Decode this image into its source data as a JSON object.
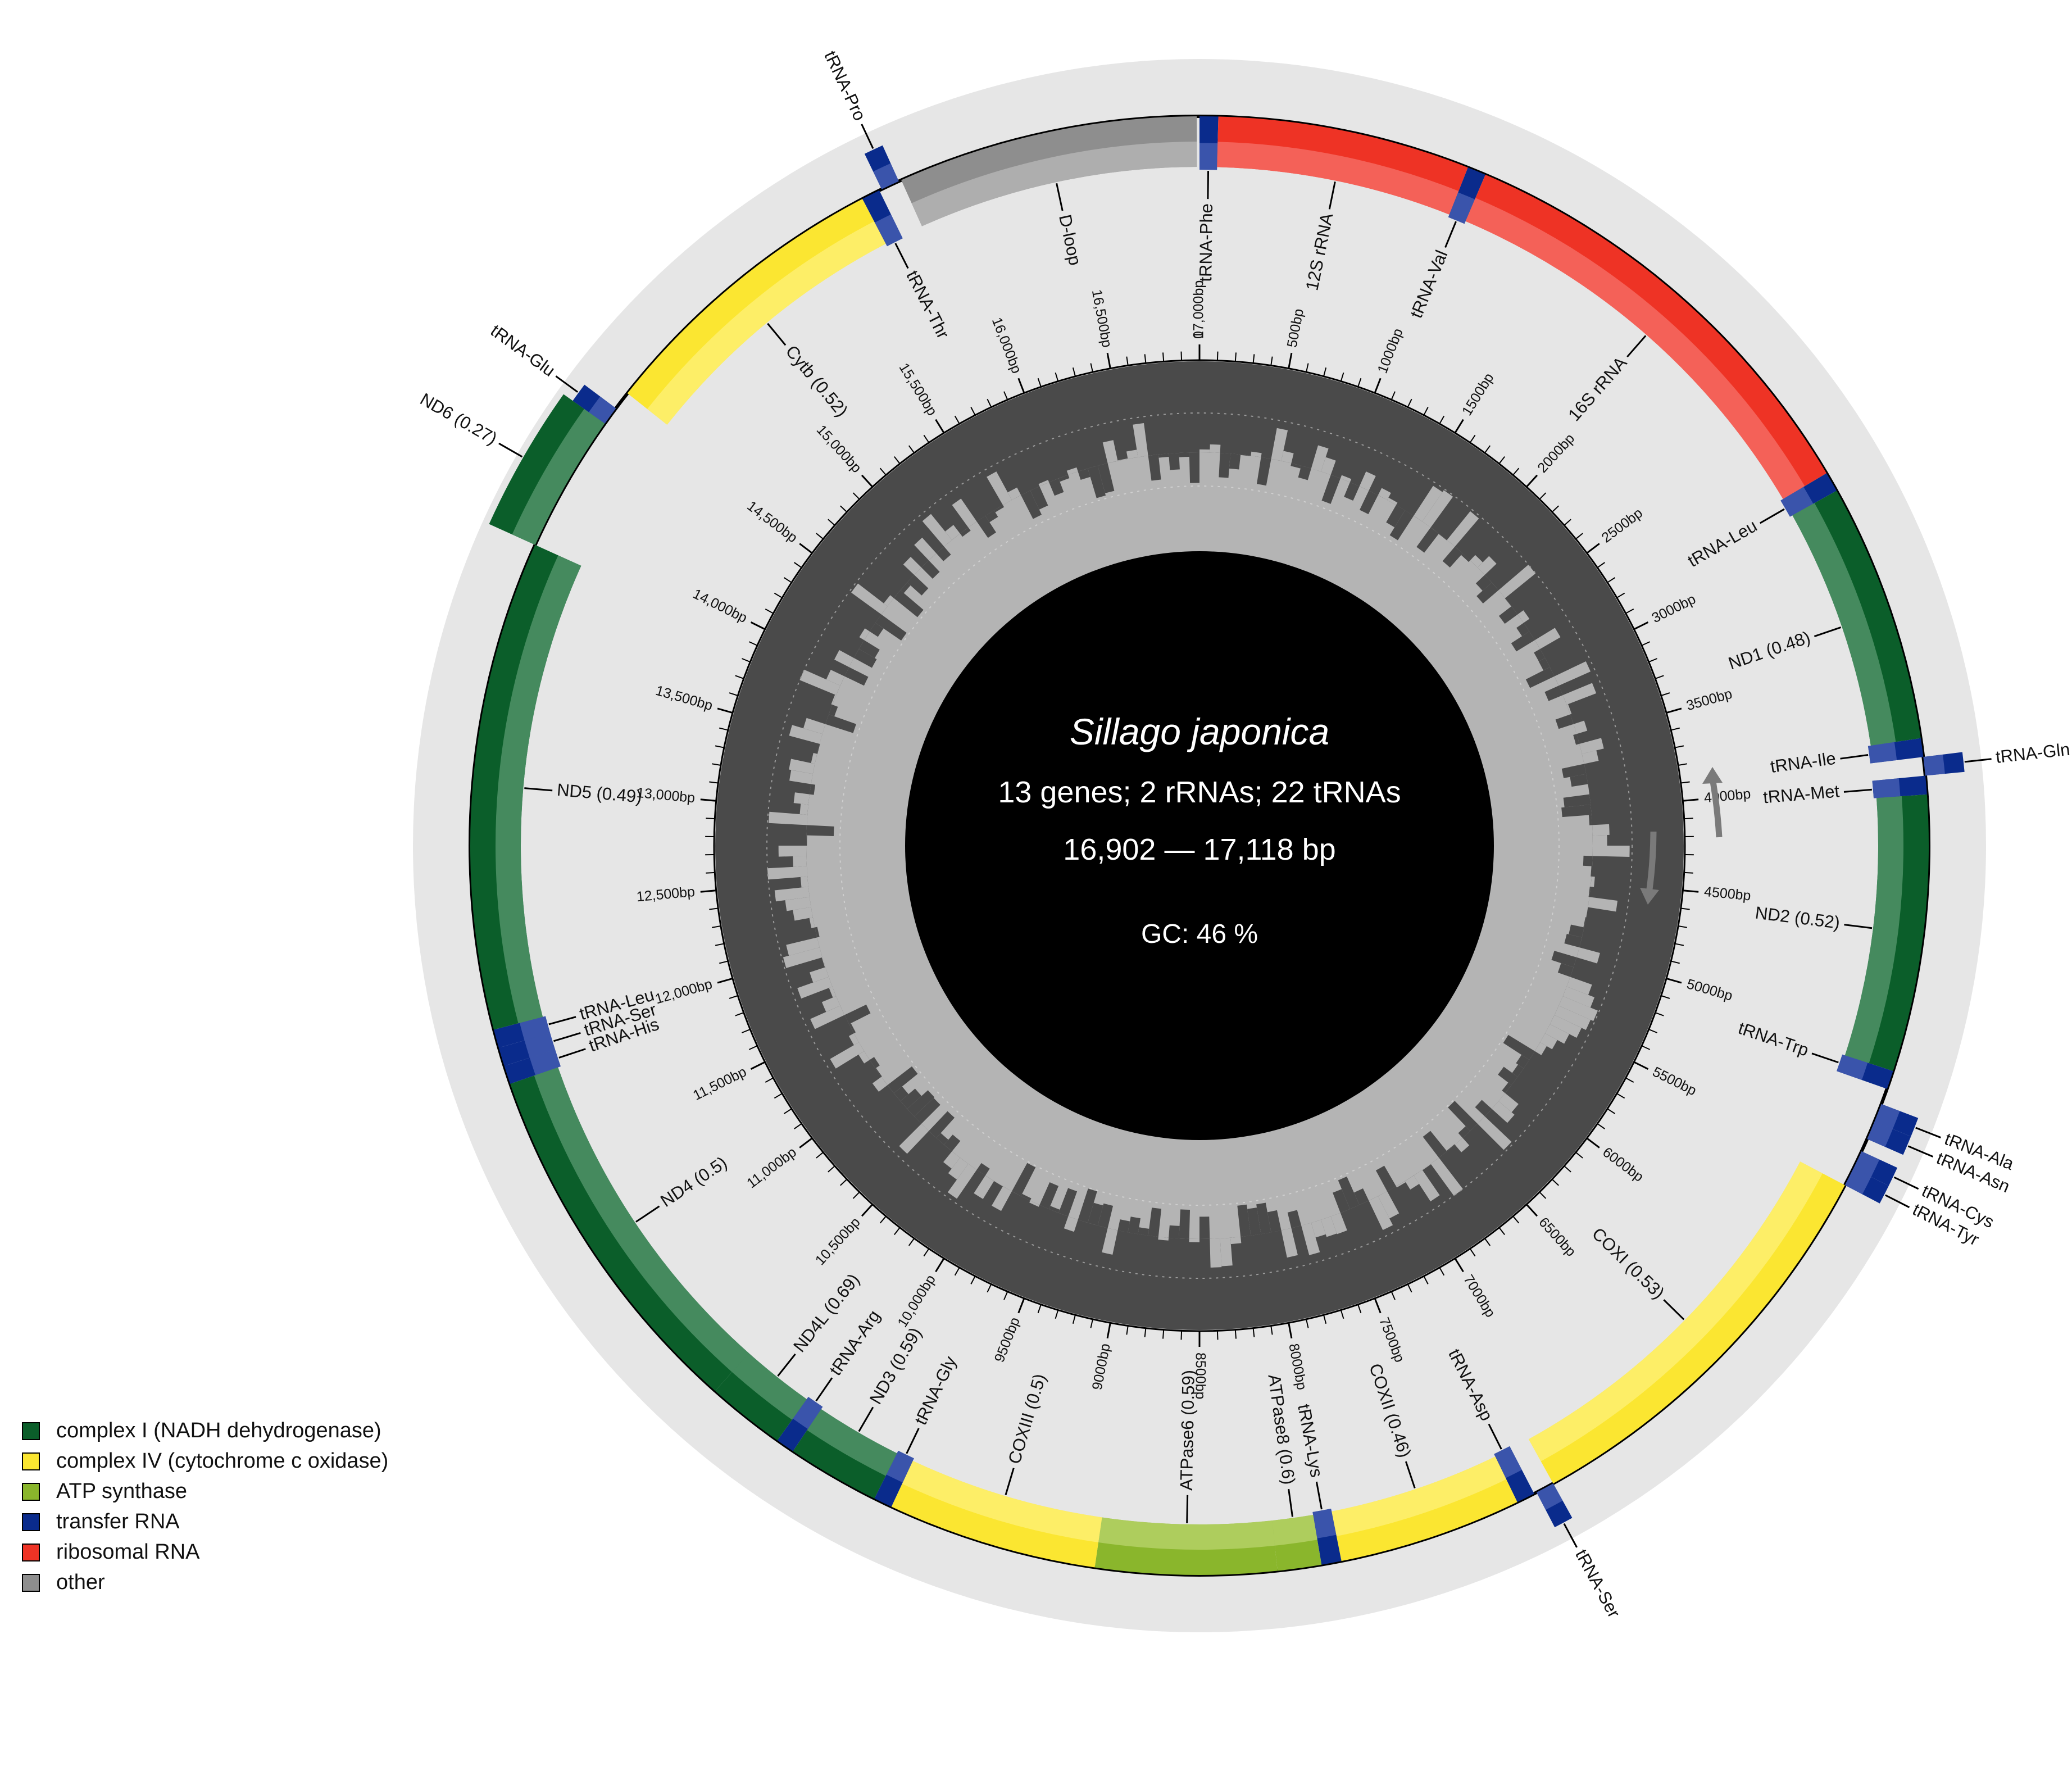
{
  "center": {
    "species": "Sillago japonica",
    "summary": "13 genes; 2 rRNAs; 22 tRNAs",
    "length": "16,902 — 17,118 bp",
    "gc": "GC: 46 %"
  },
  "colors": {
    "complex1": "#0b5e2a",
    "complex4": "#fbe631",
    "atp": "#8ab62c",
    "trna": "#0a2b8c",
    "rrna": "#ee3325",
    "other": "#8e8e8e"
  },
  "legend": [
    {
      "key": "complex1",
      "label": "complex I (NADH dehydrogenase)"
    },
    {
      "key": "complex4",
      "label": "complex IV (cytochrome c oxidase)"
    },
    {
      "key": "atp",
      "label": "ATP synthase"
    },
    {
      "key": "trna",
      "label": "transfer RNA"
    },
    {
      "key": "rrna",
      "label": "ribosomal RNA"
    },
    {
      "key": "other",
      "label": "other"
    }
  ],
  "chart_data": {
    "type": "circular-genome-map",
    "total_bp": 17000,
    "tick_labels": [
      {
        "pos": 0,
        "text": "0"
      },
      {
        "pos": 500,
        "text": "500bp"
      },
      {
        "pos": 1000,
        "text": "1000bp"
      },
      {
        "pos": 1500,
        "text": "1500bp"
      },
      {
        "pos": 2000,
        "text": "2000bp"
      },
      {
        "pos": 2500,
        "text": "2500bp"
      },
      {
        "pos": 3000,
        "text": "3000bp"
      },
      {
        "pos": 3500,
        "text": "3500bp"
      },
      {
        "pos": 4000,
        "text": "4000bp"
      },
      {
        "pos": 4500,
        "text": "4500bp"
      },
      {
        "pos": 5000,
        "text": "5000bp"
      },
      {
        "pos": 5500,
        "text": "5500bp"
      },
      {
        "pos": 6000,
        "text": "6000bp"
      },
      {
        "pos": 6500,
        "text": "6500bp"
      },
      {
        "pos": 7000,
        "text": "7000bp"
      },
      {
        "pos": 7500,
        "text": "7500bp"
      },
      {
        "pos": 8000,
        "text": "8000bp"
      },
      {
        "pos": 8500,
        "text": "8500bp"
      },
      {
        "pos": 9000,
        "text": "9000bp"
      },
      {
        "pos": 9500,
        "text": "9500bp"
      },
      {
        "pos": 10000,
        "text": "10,000bp"
      },
      {
        "pos": 10500,
        "text": "10,500bp"
      },
      {
        "pos": 11000,
        "text": "11,000bp"
      },
      {
        "pos": 11500,
        "text": "11,500bp"
      },
      {
        "pos": 12000,
        "text": "12,000bp"
      },
      {
        "pos": 12500,
        "text": "12,500bp"
      },
      {
        "pos": 13000,
        "text": "13,000bp"
      },
      {
        "pos": 13500,
        "text": "13,500bp"
      },
      {
        "pos": 14000,
        "text": "14,000bp"
      },
      {
        "pos": 14500,
        "text": "14,500bp"
      },
      {
        "pos": 15000,
        "text": "15,000bp"
      },
      {
        "pos": 15500,
        "text": "15,500bp"
      },
      {
        "pos": 16000,
        "text": "16,000bp"
      },
      {
        "pos": 16500,
        "text": "16,500bp"
      },
      {
        "pos": 17000,
        "text": "17,000bp"
      }
    ],
    "features": [
      {
        "name": "tRNA-Phe",
        "start": 0,
        "end": 70,
        "type": "trna",
        "strand": "inner"
      },
      {
        "name": "12S rRNA",
        "start": 70,
        "end": 1020,
        "type": "rrna",
        "strand": "inner"
      },
      {
        "name": "tRNA-Val",
        "start": 1020,
        "end": 1090,
        "type": "trna",
        "strand": "inner"
      },
      {
        "name": "16S rRNA",
        "start": 1090,
        "end": 2800,
        "type": "rrna",
        "strand": "inner"
      },
      {
        "name": "tRNA-Leu",
        "start": 2800,
        "end": 2875,
        "type": "trna",
        "strand": "inner"
      },
      {
        "name": "ND1 (0.48)",
        "start": 2875,
        "end": 3850,
        "type": "complex1",
        "strand": "inner"
      },
      {
        "name": "tRNA-Ile",
        "start": 3850,
        "end": 3920,
        "type": "trna",
        "strand": "inner"
      },
      {
        "name": "tRNA-Gln",
        "start": 3920,
        "end": 3990,
        "type": "trna",
        "strand": "outer"
      },
      {
        "name": "tRNA-Met",
        "start": 3990,
        "end": 4060,
        "type": "trna",
        "strand": "inner"
      },
      {
        "name": "ND2 (0.52)",
        "start": 4060,
        "end": 5100,
        "type": "complex1",
        "strand": "inner"
      },
      {
        "name": "tRNA-Trp",
        "start": 5100,
        "end": 5170,
        "type": "trna",
        "strand": "inner"
      },
      {
        "name": "tRNA-Ala",
        "start": 5230,
        "end": 5300,
        "type": "trna",
        "strand": "outer"
      },
      {
        "name": "tRNA-Asn",
        "start": 5300,
        "end": 5370,
        "type": "trna",
        "strand": "outer"
      },
      {
        "name": "tRNA-Cys",
        "start": 5420,
        "end": 5490,
        "type": "trna",
        "strand": "outer"
      },
      {
        "name": "tRNA-Tyr",
        "start": 5490,
        "end": 5560,
        "type": "trna",
        "strand": "outer"
      },
      {
        "name": "COXI (0.53)",
        "start": 5560,
        "end": 7130,
        "type": "complex4",
        "strand": "inner"
      },
      {
        "name": "tRNA-Ser",
        "start": 7130,
        "end": 7200,
        "type": "trna",
        "strand": "outer"
      },
      {
        "name": "tRNA-Asp",
        "start": 7210,
        "end": 7280,
        "type": "trna",
        "strand": "inner"
      },
      {
        "name": "COXII (0.46)",
        "start": 7280,
        "end": 7970,
        "type": "complex4",
        "strand": "inner"
      },
      {
        "name": "tRNA-Lys",
        "start": 7970,
        "end": 8045,
        "type": "trna",
        "strand": "inner"
      },
      {
        "name": "ATPase8 (0.6)",
        "start": 8045,
        "end": 8210,
        "type": "atp",
        "strand": "inner"
      },
      {
        "name": "ATPase6 (0.59)",
        "start": 8210,
        "end": 8890,
        "type": "atp",
        "strand": "inner"
      },
      {
        "name": "COXIII (0.5)",
        "start": 8890,
        "end": 9680,
        "type": "complex4",
        "strand": "inner"
      },
      {
        "name": "tRNA-Gly",
        "start": 9680,
        "end": 9750,
        "type": "trna",
        "strand": "inner"
      },
      {
        "name": "ND3 (0.59)",
        "start": 9750,
        "end": 10100,
        "type": "complex1",
        "strand": "inner"
      },
      {
        "name": "tRNA-Arg",
        "start": 10100,
        "end": 10170,
        "type": "trna",
        "strand": "inner"
      },
      {
        "name": "ND4L (0.69)",
        "start": 10170,
        "end": 10465,
        "type": "complex1",
        "strand": "inner"
      },
      {
        "name": "ND4 (0.5)",
        "start": 10465,
        "end": 11850,
        "type": "complex1",
        "strand": "inner"
      },
      {
        "name": "tRNA-His",
        "start": 11850,
        "end": 11920,
        "type": "trna",
        "strand": "inner"
      },
      {
        "name": "tRNA-Ser",
        "start": 11920,
        "end": 11990,
        "type": "trna",
        "strand": "inner"
      },
      {
        "name": "tRNA-Leu",
        "start": 11990,
        "end": 12060,
        "type": "trna",
        "strand": "inner"
      },
      {
        "name": "ND5 (0.49)",
        "start": 12060,
        "end": 13900,
        "type": "complex1",
        "strand": "inner"
      },
      {
        "name": "ND6 (0.27)",
        "start": 13900,
        "end": 14420,
        "type": "complex1",
        "strand": "outer"
      },
      {
        "name": "tRNA-Glu",
        "start": 14420,
        "end": 14490,
        "type": "trna",
        "strand": "outer"
      },
      {
        "name": "Cytb (0.52)",
        "start": 14560,
        "end": 15700,
        "type": "complex4",
        "strand": "inner"
      },
      {
        "name": "tRNA-Thr",
        "start": 15700,
        "end": 15770,
        "type": "trna",
        "strand": "inner"
      },
      {
        "name": "tRNA-Pro",
        "start": 15780,
        "end": 15850,
        "type": "trna",
        "strand": "outer"
      },
      {
        "name": "D-loop",
        "start": 15860,
        "end": 16990,
        "type": "other",
        "strand": "inner"
      }
    ],
    "gc_content_note": "GC content histogram of the sequence drawn as dark/light grey rings"
  }
}
